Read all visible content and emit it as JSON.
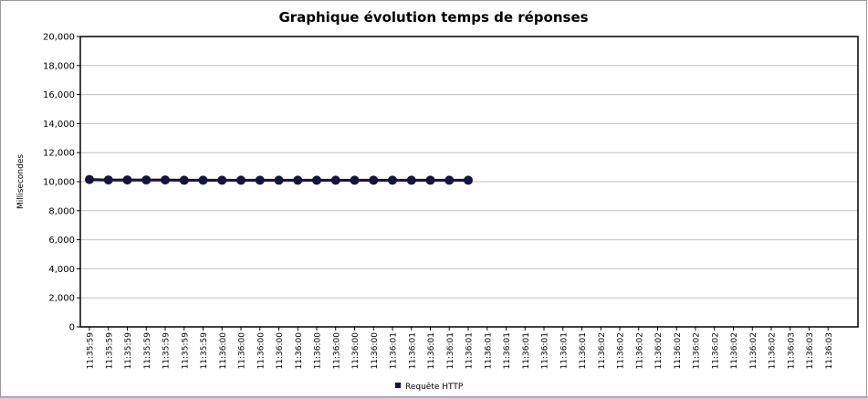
{
  "chart_data": {
    "type": "line",
    "title": "Graphique évolution temps de réponses",
    "y_label": "Millisecondes",
    "categories": [
      "11:35:59",
      "11:35:59",
      "11:35:59",
      "11:35:59",
      "11:35:59",
      "11:35:59",
      "11:35:59",
      "11:36:00",
      "11:36:00",
      "11:36:00",
      "11:36:00",
      "11:36:00",
      "11:36:00",
      "11:36:00",
      "11:36:00",
      "11:36:00",
      "11:36:01",
      "11:36:01",
      "11:36:01",
      "11:36:01",
      "11:36:01",
      "11:36:01",
      "11:36:01",
      "11:36:01",
      "11:36:01",
      "11:36:01",
      "11:36:01",
      "11:36:02",
      "11:36:02",
      "11:36:02",
      "11:36:02",
      "11:36:02",
      "11:36:02",
      "11:36:02",
      "11:36:02",
      "11:36:02",
      "11:36:02",
      "11:36:03",
      "11:36:03",
      "11:36:03"
    ],
    "series": [
      {
        "name": "Requête HTTP",
        "color": "#14143c",
        "values": [
          10150,
          10120,
          10120,
          10120,
          10120,
          10100,
          10100,
          10100,
          10100,
          10100,
          10100,
          10100,
          10100,
          10100,
          10100,
          10100,
          10100,
          10100,
          10100,
          10100,
          10100,
          null,
          null,
          null,
          null,
          null,
          null,
          null,
          null,
          null,
          null,
          null,
          null,
          null,
          null,
          null,
          null,
          null,
          null,
          null
        ]
      }
    ],
    "ylim": [
      0,
      20000
    ],
    "yticks": [
      0,
      {
        "value": 2000,
        "label": "2,000"
      },
      {
        "value": 4000,
        "label": "4,000"
      },
      {
        "value": 6000,
        "label": "6,000"
      },
      {
        "value": 8000,
        "label": "8,000"
      },
      {
        "value": 10000,
        "label": "10,000"
      },
      {
        "value": 12000,
        "label": "12,000"
      },
      {
        "value": 14000,
        "label": "14,000"
      },
      {
        "value": 16000,
        "label": "16,000"
      },
      {
        "value": 18000,
        "label": "18,000"
      },
      {
        "value": 20000,
        "label": "20,000"
      }
    ],
    "grid": true,
    "legend": "bottom"
  }
}
